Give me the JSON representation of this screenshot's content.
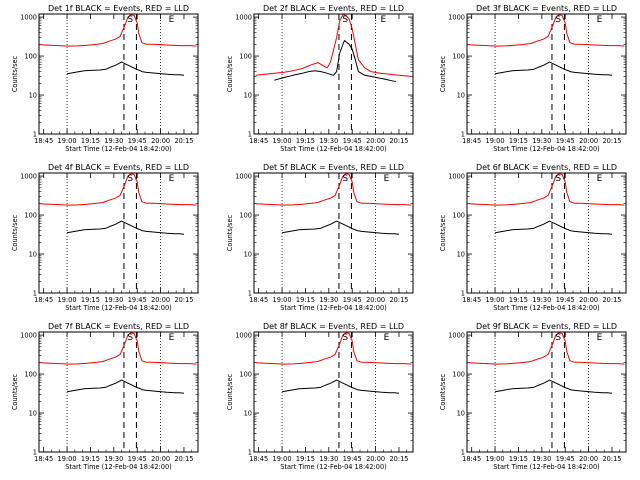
{
  "figure": {
    "xlabel": "Start Time (12-Feb-04 18:42:00)",
    "ylabel": "Counts/sec",
    "x_ticks": [
      "18:45",
      "19:00",
      "19:15",
      "19:30",
      "19:45",
      "20:00",
      "20:15"
    ],
    "y_ticks": [
      "1",
      "10",
      "100",
      "1000"
    ],
    "markers": {
      "start": "S",
      "end": "E"
    },
    "colors": {
      "events": "#000000",
      "lld": "#ff0000",
      "axes": "#000000"
    }
  },
  "chart_data": [
    {
      "type": "line",
      "title": "Det 1f BLACK = Events, RED = LLD",
      "x_unit": "minutes after 18:45",
      "xlim": [
        -3,
        99
      ],
      "ylim": [
        1,
        1200
      ],
      "yscale": "log",
      "interval_lines": [
        51.5,
        59.5
      ],
      "dotted_lines": [
        15,
        75
      ],
      "markers": {
        "S": 55.5,
        "E": 82
      },
      "series": [
        {
          "name": "Events",
          "x": [
            15,
            20,
            26,
            32,
            36,
            40,
            43,
            46,
            50,
            60,
            62,
            63,
            66,
            72,
            79,
            84,
            87,
            90
          ],
          "y": [
            35,
            38,
            42,
            43,
            44,
            46,
            52,
            58,
            70,
            45,
            42,
            40,
            38,
            36,
            34,
            33,
            33,
            32
          ]
        },
        {
          "name": "LLD",
          "x": [
            -2,
            4,
            10,
            16,
            22,
            28,
            34,
            38,
            42,
            46,
            49,
            52,
            54,
            56,
            58,
            60,
            61,
            63,
            66,
            70,
            76,
            82,
            88,
            94,
            98
          ],
          "y": [
            195,
            190,
            185,
            180,
            182,
            190,
            200,
            210,
            240,
            270,
            320,
            600,
            1000,
            1150,
            1100,
            700,
            380,
            220,
            200,
            200,
            195,
            190,
            185,
            185,
            180
          ]
        }
      ]
    },
    {
      "type": "line",
      "title": "Det 2f BLACK = Events, RED = LLD",
      "x_unit": "minutes after 18:45",
      "xlim": [
        -3,
        99
      ],
      "ylim": [
        1,
        1200
      ],
      "yscale": "log",
      "interval_lines": [
        51.5,
        59.5
      ],
      "dotted_lines": [
        15,
        75
      ],
      "markers": {
        "S": 55.5,
        "E": 80
      },
      "series": [
        {
          "name": "Events",
          "x": [
            10,
            16,
            22,
            28,
            32,
            36,
            40,
            44,
            48,
            50,
            52,
            55,
            58,
            60,
            62,
            64,
            68,
            72,
            76,
            80,
            84,
            88
          ],
          "y": [
            24,
            28,
            32,
            36,
            40,
            42,
            40,
            36,
            32,
            40,
            120,
            250,
            200,
            150,
            80,
            40,
            32,
            30,
            28,
            26,
            24,
            22
          ]
        },
        {
          "name": "LLD",
          "x": [
            -2,
            4,
            10,
            16,
            22,
            28,
            34,
            38,
            42,
            44,
            46,
            48,
            50,
            52,
            54,
            56,
            58,
            60,
            62,
            64,
            68,
            72,
            78,
            84,
            90,
            98
          ],
          "y": [
            32,
            34,
            36,
            38,
            42,
            48,
            60,
            68,
            55,
            50,
            70,
            140,
            300,
            800,
            1150,
            1100,
            900,
            500,
            200,
            80,
            50,
            40,
            36,
            34,
            32,
            30
          ]
        }
      ]
    },
    {
      "type": "line",
      "title": "Det 3f BLACK = Events, RED = LLD",
      "x_unit": "minutes after 18:45",
      "xlim": [
        -3,
        99
      ],
      "ylim": [
        1,
        1200
      ],
      "yscale": "log",
      "interval_lines": [
        51.5,
        59.5
      ],
      "dotted_lines": [
        15,
        75
      ],
      "markers": {
        "S": 55.5,
        "E": 82
      },
      "series": [
        {
          "name": "Events",
          "x": [
            15,
            20,
            26,
            32,
            36,
            40,
            43,
            46,
            50,
            60,
            62,
            63,
            66,
            72,
            79,
            84,
            87,
            90
          ],
          "y": [
            35,
            38,
            42,
            43,
            44,
            46,
            52,
            58,
            70,
            45,
            42,
            40,
            38,
            36,
            34,
            33,
            33,
            32
          ]
        },
        {
          "name": "LLD",
          "x": [
            -2,
            4,
            10,
            16,
            22,
            28,
            34,
            38,
            42,
            46,
            49,
            52,
            54,
            56,
            58,
            60,
            61,
            63,
            66,
            70,
            76,
            82,
            88,
            94,
            98
          ],
          "y": [
            195,
            190,
            185,
            180,
            182,
            190,
            200,
            210,
            240,
            270,
            320,
            600,
            1000,
            1150,
            1100,
            700,
            380,
            220,
            200,
            200,
            195,
            190,
            185,
            185,
            180
          ]
        }
      ]
    },
    {
      "type": "line",
      "title": "Det 4f BLACK = Events, RED = LLD",
      "x_unit": "minutes after 18:45",
      "xlim": [
        -3,
        99
      ],
      "ylim": [
        1,
        1200
      ],
      "yscale": "log",
      "interval_lines": [
        51.5,
        59.5
      ],
      "dotted_lines": [
        15,
        75
      ],
      "markers": {
        "S": 55.5,
        "E": 82
      },
      "series": [
        {
          "name": "Events",
          "x": [
            15,
            20,
            26,
            32,
            36,
            40,
            43,
            46,
            50,
            60,
            62,
            63,
            66,
            72,
            79,
            84,
            87,
            90
          ],
          "y": [
            35,
            38,
            42,
            43,
            44,
            46,
            52,
            58,
            70,
            45,
            42,
            40,
            38,
            36,
            34,
            33,
            33,
            32
          ]
        },
        {
          "name": "LLD",
          "x": [
            -2,
            4,
            10,
            16,
            22,
            28,
            34,
            38,
            42,
            46,
            49,
            52,
            54,
            56,
            58,
            60,
            61,
            63,
            66,
            70,
            76,
            82,
            88,
            94,
            98
          ],
          "y": [
            195,
            190,
            185,
            180,
            182,
            190,
            200,
            210,
            240,
            270,
            320,
            600,
            1000,
            1150,
            1100,
            700,
            380,
            220,
            200,
            200,
            195,
            190,
            185,
            185,
            180
          ]
        }
      ]
    },
    {
      "type": "line",
      "title": "Det 5f BLACK = Events, RED = LLD",
      "x_unit": "minutes after 18:45",
      "xlim": [
        -3,
        99
      ],
      "ylim": [
        1,
        1200
      ],
      "yscale": "log",
      "interval_lines": [
        51.5,
        59.5
      ],
      "dotted_lines": [
        15,
        75
      ],
      "markers": {
        "S": 55.5,
        "E": 82
      },
      "series": [
        {
          "name": "Events",
          "x": [
            15,
            20,
            26,
            32,
            36,
            40,
            43,
            46,
            50,
            60,
            62,
            63,
            66,
            72,
            79,
            84,
            87,
            90
          ],
          "y": [
            35,
            38,
            42,
            43,
            44,
            46,
            52,
            58,
            70,
            45,
            42,
            40,
            38,
            36,
            34,
            33,
            33,
            32
          ]
        },
        {
          "name": "LLD",
          "x": [
            -2,
            4,
            10,
            16,
            22,
            28,
            34,
            38,
            42,
            46,
            49,
            52,
            54,
            56,
            58,
            60,
            61,
            63,
            66,
            70,
            76,
            82,
            88,
            94,
            98
          ],
          "y": [
            195,
            190,
            185,
            180,
            182,
            190,
            200,
            210,
            240,
            270,
            320,
            600,
            1000,
            1150,
            1100,
            700,
            380,
            220,
            200,
            200,
            195,
            190,
            185,
            185,
            180
          ]
        }
      ]
    },
    {
      "type": "line",
      "title": "Det 6f BLACK = Events, RED = LLD",
      "x_unit": "minutes after 18:45",
      "xlim": [
        -3,
        99
      ],
      "ylim": [
        1,
        1200
      ],
      "yscale": "log",
      "interval_lines": [
        51.5,
        59.5
      ],
      "dotted_lines": [
        15,
        75
      ],
      "markers": {
        "S": 55.5,
        "E": 82
      },
      "series": [
        {
          "name": "Events",
          "x": [
            15,
            20,
            26,
            32,
            36,
            40,
            43,
            46,
            50,
            60,
            62,
            63,
            66,
            72,
            79,
            84,
            87,
            90
          ],
          "y": [
            35,
            38,
            42,
            43,
            44,
            46,
            52,
            58,
            70,
            45,
            42,
            40,
            38,
            36,
            34,
            33,
            33,
            32
          ]
        },
        {
          "name": "LLD",
          "x": [
            -2,
            4,
            10,
            16,
            22,
            28,
            34,
            38,
            42,
            46,
            49,
            52,
            54,
            56,
            58,
            60,
            61,
            63,
            66,
            70,
            76,
            82,
            88,
            94,
            98
          ],
          "y": [
            195,
            190,
            185,
            180,
            182,
            190,
            200,
            210,
            240,
            270,
            320,
            600,
            1000,
            1150,
            1100,
            700,
            380,
            220,
            200,
            200,
            195,
            190,
            185,
            185,
            180
          ]
        }
      ]
    },
    {
      "type": "line",
      "title": "Det 7f BLACK = Events, RED = LLD",
      "x_unit": "minutes after 18:45",
      "xlim": [
        -3,
        99
      ],
      "ylim": [
        1,
        1200
      ],
      "yscale": "log",
      "interval_lines": [
        51.5,
        59.5
      ],
      "dotted_lines": [
        15,
        75
      ],
      "markers": {
        "S": 55.5,
        "E": 82
      },
      "series": [
        {
          "name": "Events",
          "x": [
            15,
            20,
            26,
            32,
            36,
            40,
            43,
            46,
            50,
            60,
            62,
            63,
            66,
            72,
            79,
            84,
            87,
            90
          ],
          "y": [
            35,
            38,
            42,
            43,
            44,
            46,
            52,
            58,
            70,
            45,
            42,
            40,
            38,
            36,
            34,
            33,
            33,
            32
          ]
        },
        {
          "name": "LLD",
          "x": [
            -2,
            4,
            10,
            16,
            22,
            28,
            34,
            38,
            42,
            46,
            49,
            52,
            54,
            56,
            58,
            60,
            61,
            63,
            66,
            70,
            76,
            82,
            88,
            94,
            98
          ],
          "y": [
            195,
            190,
            185,
            180,
            182,
            190,
            200,
            210,
            240,
            270,
            320,
            600,
            1000,
            1150,
            1100,
            700,
            380,
            220,
            200,
            200,
            195,
            190,
            185,
            185,
            180
          ]
        }
      ]
    },
    {
      "type": "line",
      "title": "Det 8f BLACK = Events, RED = LLD",
      "x_unit": "minutes after 18:45",
      "xlim": [
        -3,
        99
      ],
      "ylim": [
        1,
        1200
      ],
      "yscale": "log",
      "interval_lines": [
        51.5,
        59.5
      ],
      "dotted_lines": [
        15,
        75
      ],
      "markers": {
        "S": 55.5,
        "E": 82
      },
      "series": [
        {
          "name": "Events",
          "x": [
            15,
            20,
            26,
            32,
            36,
            40,
            43,
            46,
            50,
            60,
            62,
            63,
            66,
            72,
            79,
            84,
            87,
            90
          ],
          "y": [
            35,
            38,
            42,
            43,
            44,
            46,
            52,
            58,
            70,
            45,
            42,
            40,
            38,
            36,
            34,
            33,
            33,
            32
          ]
        },
        {
          "name": "LLD",
          "x": [
            -2,
            4,
            10,
            16,
            22,
            28,
            34,
            38,
            42,
            46,
            49,
            52,
            54,
            56,
            58,
            60,
            61,
            63,
            66,
            70,
            76,
            82,
            88,
            94,
            98
          ],
          "y": [
            195,
            190,
            185,
            180,
            182,
            190,
            200,
            210,
            240,
            270,
            320,
            600,
            1000,
            1150,
            1100,
            700,
            380,
            220,
            200,
            200,
            195,
            190,
            185,
            185,
            180
          ]
        }
      ]
    },
    {
      "type": "line",
      "title": "Det 9f BLACK = Events, RED = LLD",
      "x_unit": "minutes after 18:45",
      "xlim": [
        -3,
        99
      ],
      "ylim": [
        1,
        1200
      ],
      "yscale": "log",
      "interval_lines": [
        51.5,
        59.5
      ],
      "dotted_lines": [
        15,
        75
      ],
      "markers": {
        "S": 55.5,
        "E": 82
      },
      "series": [
        {
          "name": "Events",
          "x": [
            15,
            20,
            26,
            32,
            36,
            40,
            43,
            46,
            50,
            60,
            62,
            63,
            66,
            72,
            79,
            84,
            87,
            90
          ],
          "y": [
            35,
            38,
            42,
            43,
            44,
            46,
            52,
            58,
            70,
            45,
            42,
            40,
            38,
            36,
            34,
            33,
            33,
            32
          ]
        },
        {
          "name": "LLD",
          "x": [
            -2,
            4,
            10,
            16,
            22,
            28,
            34,
            38,
            42,
            46,
            49,
            52,
            54,
            56,
            58,
            60,
            61,
            63,
            66,
            70,
            76,
            82,
            88,
            94,
            98
          ],
          "y": [
            195,
            190,
            185,
            180,
            182,
            190,
            200,
            210,
            240,
            270,
            320,
            600,
            1000,
            1150,
            1100,
            700,
            380,
            220,
            200,
            200,
            195,
            190,
            185,
            185,
            180
          ]
        }
      ]
    }
  ]
}
